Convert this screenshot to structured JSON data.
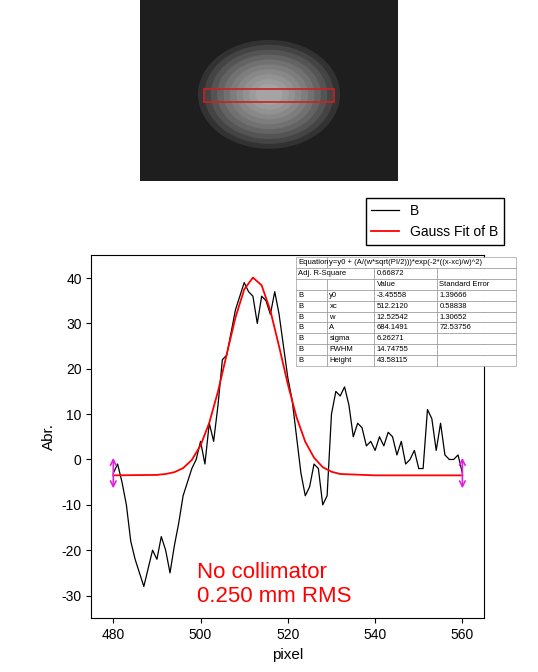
{
  "chart_data": {
    "type": "line",
    "x_label": "pixel",
    "y_label": "Abr.",
    "series": [
      {
        "name": "B",
        "color": "#000000",
        "x": [
          480,
          481,
          482,
          483,
          484,
          485,
          486,
          487,
          488,
          489,
          490,
          491,
          492,
          493,
          494,
          495,
          496,
          497,
          498,
          499,
          500,
          501,
          502,
          503,
          504,
          505,
          506,
          507,
          508,
          509,
          510,
          511,
          512,
          513,
          514,
          515,
          516,
          517,
          518,
          519,
          520,
          521,
          522,
          523,
          524,
          525,
          526,
          527,
          528,
          529,
          530,
          531,
          532,
          533,
          534,
          535,
          536,
          537,
          538,
          539,
          540,
          541,
          542,
          543,
          544,
          545,
          546,
          547,
          548,
          549,
          550,
          551,
          552,
          553,
          554,
          555,
          556,
          557,
          558,
          559,
          560
        ],
        "values": [
          -3,
          -1,
          -5,
          -10,
          -18,
          -22,
          -25,
          -28,
          -24,
          -20,
          -22,
          -17,
          -20,
          -25,
          -19,
          -14,
          -8,
          -5,
          -2,
          0,
          4,
          -1,
          8,
          4,
          12,
          22,
          23,
          28,
          33,
          36,
          39,
          37,
          36,
          30,
          36,
          35,
          32,
          37,
          32,
          25,
          18,
          13,
          5,
          -3,
          -8,
          -6,
          -1,
          -2,
          -10,
          -8,
          10,
          15,
          14,
          16,
          12,
          5,
          8,
          7,
          3,
          4,
          2,
          5,
          3,
          6,
          5,
          1,
          4,
          -1,
          0,
          2,
          -2,
          -2,
          11,
          9,
          2,
          8,
          1,
          0,
          0,
          1,
          -3
        ]
      },
      {
        "name": "Gauss Fit of B",
        "color": "#ff0000",
        "x": [
          480,
          490,
          492,
          494,
          496,
          498,
          500,
          502,
          504,
          506,
          508,
          510,
          512,
          514,
          516,
          518,
          520,
          522,
          524,
          526,
          528,
          530,
          532,
          540,
          560
        ],
        "values": [
          -3.5,
          -3.4,
          -3.2,
          -2.8,
          -1.9,
          -0.1,
          3.1,
          8.1,
          15.0,
          23.2,
          31.3,
          37.5,
          40.1,
          38.4,
          32.8,
          24.9,
          16.6,
          9.3,
          3.9,
          0.4,
          -1.7,
          -2.7,
          -3.2,
          -3.5,
          -3.5
        ]
      }
    ],
    "xlim": [
      475,
      565
    ],
    "xticks": [
      480,
      500,
      520,
      540,
      560
    ],
    "ylim": [
      -35,
      45
    ],
    "yticks": [
      -30,
      -20,
      -10,
      0,
      10,
      20,
      30,
      40
    ],
    "legend": "upper right",
    "annotation": "No collimator\n0.250 mm RMS",
    "fit_table": {
      "equation_label": "Equation",
      "equation": "y=y0 + (A/(w*sqrt(PI/2)))*exp(-2*((x-xc)/w)^2)",
      "r2_label": "Adj. R-Square",
      "r2": "0.66872",
      "columns": [
        "Value",
        "Standard Error"
      ],
      "rows": [
        [
          "B",
          "y0",
          "-3.45558",
          "1.39666"
        ],
        [
          "B",
          "xc",
          "512.2120",
          "0.58838"
        ],
        [
          "B",
          "w",
          "12.52542",
          "1.30652"
        ],
        [
          "B",
          "A",
          "684.1491",
          "72.53756"
        ],
        [
          "B",
          "sigma",
          "6.26271",
          null
        ],
        [
          "B",
          "FWHM",
          "14.74755",
          null
        ],
        [
          "B",
          "Height",
          "43.58115",
          null
        ]
      ]
    }
  }
}
